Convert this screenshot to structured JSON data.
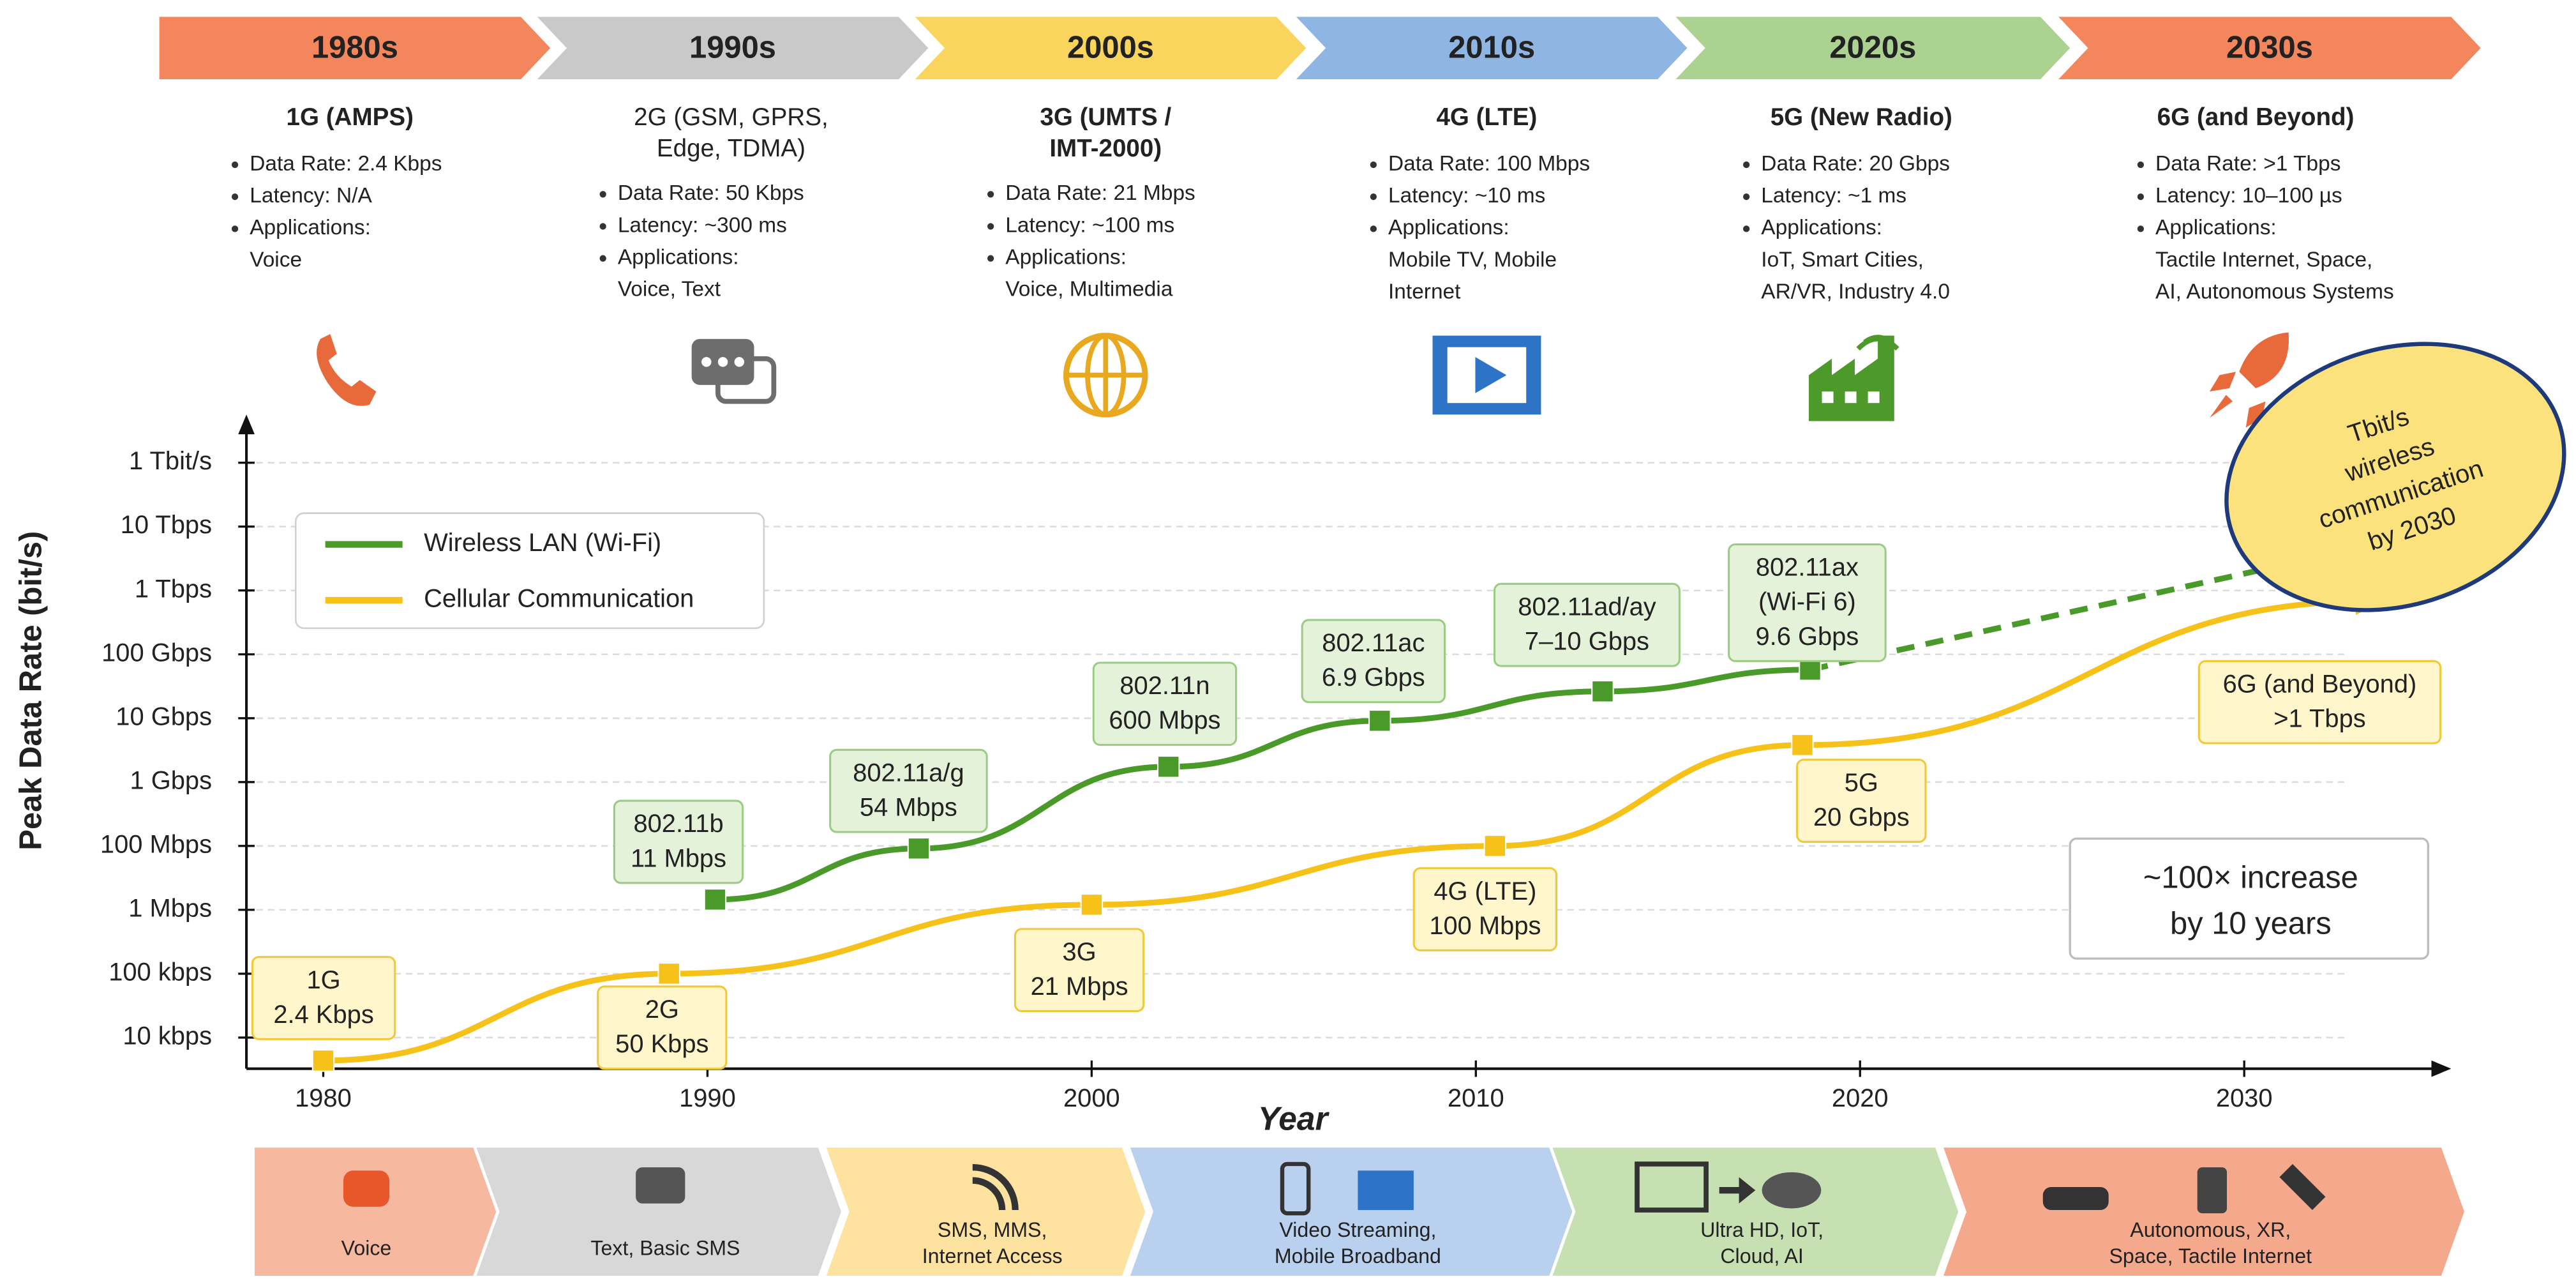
{
  "timeline": [
    {
      "decade": "1980s",
      "color": "#f4865e",
      "title_color": "#e0622a",
      "generation": [
        "1G (AMPS)"
      ],
      "items": [
        [
          "Data Rate: 2.4 Kbps"
        ],
        [
          "Latency: N/A"
        ],
        [
          "Applications:",
          "Voice"
        ]
      ]
    },
    {
      "decade": "1990s",
      "color": "#c9c9c9",
      "title_color": "#6f6f6f",
      "generation": [
        "2G (GSM, GPRS,",
        "Edge, TDMA)"
      ],
      "items": [
        [
          "Data Rate: 50 Kbps"
        ],
        [
          "Latency: ~300 ms"
        ],
        [
          "Applications:",
          "Voice, Text"
        ]
      ]
    },
    {
      "decade": "2000s",
      "color": "#f9d55e",
      "title_color": "#e6a214",
      "generation": [
        "3G (UMTS /",
        "IMT-2000)"
      ],
      "items": [
        [
          "Data Rate: 21 Mbps"
        ],
        [
          "Latency: ~100 ms"
        ],
        [
          "Applications:",
          "Voice, Multimedia"
        ]
      ]
    },
    {
      "decade": "2010s",
      "color": "#8fb5e3",
      "title_color": "#2e74c6",
      "generation": [
        "4G (LTE)"
      ],
      "items": [
        [
          "Data Rate: 100 Mbps"
        ],
        [
          "Latency: ~10 ms"
        ],
        [
          "Applications:",
          "Mobile TV, Mobile",
          "Internet"
        ]
      ]
    },
    {
      "decade": "2020s",
      "color": "#abd290",
      "title_color": "#4d9a2a",
      "generation": [
        "5G (New Radio)"
      ],
      "items": [
        [
          "Data Rate: 20 Gbps"
        ],
        [
          "Latency: ~1 ms"
        ],
        [
          "Applications:",
          "IoT, Smart Cities,",
          "AR/VR, Industry 4.0"
        ]
      ]
    },
    {
      "decade": "2030s",
      "color": "#f4865e",
      "title_color": "#e0622a",
      "generation": [
        "6G (and Beyond)"
      ],
      "items": [
        [
          "Data Rate: >1 Tbps"
        ],
        [
          "Latency: 10–100 µs"
        ],
        [
          "Applications:",
          "Tactile Internet, Space,",
          "AI, Autonomous Systems"
        ]
      ]
    }
  ],
  "chart_data": {
    "type": "line",
    "y_label": "Peak Data Rate (bit/s)",
    "x_label": "Year",
    "xlim": [
      1978,
      2035.3
    ],
    "xticks": [
      1980,
      1990,
      2000,
      2010,
      2020,
      2030
    ],
    "ylim": [
      -0.5,
      9.6
    ],
    "yticks": [
      {
        "value": 0,
        "label": "10 kbps"
      },
      {
        "value": 1,
        "label": "100 kbps"
      },
      {
        "value": 2,
        "label": "1 Mbps"
      },
      {
        "value": 3,
        "label": "100 Mbps"
      },
      {
        "value": 4,
        "label": "1 Gbps"
      },
      {
        "value": 5,
        "label": "10 Gbps"
      },
      {
        "value": 6,
        "label": "100 Gbps"
      },
      {
        "value": 7,
        "label": "1 Tbps"
      },
      {
        "value": 8,
        "label": "10 Tbps"
      },
      {
        "value": 9,
        "label": "1 Tbit/s"
      }
    ],
    "grid": true,
    "legend": "upper left",
    "series": [
      {
        "name": "Wireless LAN (Wi-Fi)",
        "color": "#4a9a2a",
        "x": [
          1990.2,
          1995.5,
          2002,
          2007.5,
          2013.3,
          2018.7
        ],
        "values": [
          2.16,
          2.96,
          4.24,
          4.96,
          5.42,
          5.76
        ],
        "point_labels": [
          [
            "802.11b",
            "11 Mbps"
          ],
          [
            "802.11a/g",
            "54 Mbps"
          ],
          [
            "802.11n",
            "600 Mbps"
          ],
          [
            "802.11ac",
            "6.9 Gbps"
          ],
          [
            "802.11ad/ay",
            "7–10 Gbps"
          ],
          [
            "802.11ax",
            "(Wi-Fi 6)",
            "9.6 Gbps"
          ]
        ],
        "projection": {
          "x": [
            2018.7,
            2032
          ],
          "values": [
            5.76,
            7.53
          ]
        }
      },
      {
        "name": "Cellular Communication",
        "color": "#f6c21a",
        "x": [
          1980,
          1989,
          2000,
          2010.5,
          2018.5,
          2033.5
        ],
        "values": [
          -0.36,
          1.0,
          2.08,
          3.0,
          4.58,
          6.84
        ],
        "point_labels": [
          [
            "1G",
            "2.4 Kbps"
          ],
          [
            "2G",
            "50 Kbps"
          ],
          [
            "3G",
            "21 Mbps"
          ],
          [
            "4G (LTE)",
            "100 Mbps"
          ],
          [
            "5G",
            "20 Gbps"
          ],
          [
            "6G (and Beyond)",
            ">1 Tbps"
          ]
        ]
      }
    ],
    "callout": [
      "Tbit/s",
      "wireless",
      "communication",
      "by 2030"
    ],
    "note": [
      "~100× increase",
      "by  10 years"
    ]
  },
  "applications": [
    {
      "color": "#f6b89e",
      "lines": [
        "Voice"
      ]
    },
    {
      "color": "#d8d8d8",
      "lines": [
        "Text, Basic SMS"
      ]
    },
    {
      "color": "#fde2a0",
      "lines": [
        "SMS, MMS,",
        "Internet Access"
      ]
    },
    {
      "color": "#b9d0ee",
      "lines": [
        "Video Streaming,",
        "Mobile Broadband"
      ]
    },
    {
      "color": "#c6e0b2",
      "lines": [
        "Ultra HD, IoT,",
        "Cloud, AI"
      ]
    },
    {
      "color": "#f5a98c",
      "lines": [
        "Autonomous, XR,",
        "Space, Tactile Internet"
      ]
    }
  ]
}
